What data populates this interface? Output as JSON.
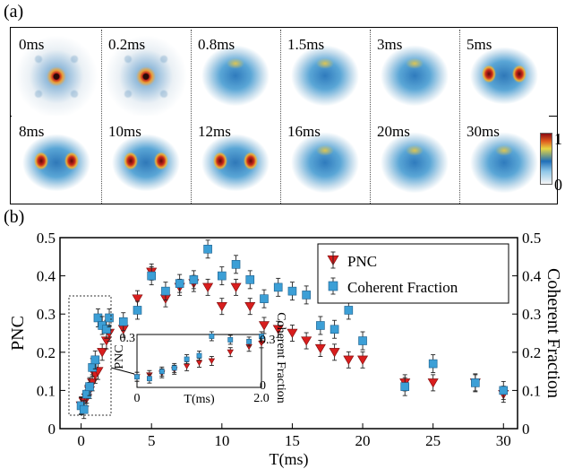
{
  "panel_a": {
    "label": "(a)",
    "frames": [
      "0ms",
      "0.2ms",
      "0.8ms",
      "1.5ms",
      "3ms",
      "5ms",
      "8ms",
      "10ms",
      "12ms",
      "16ms",
      "20ms",
      "30ms"
    ],
    "colorbar": {
      "max_label": "1",
      "min_label": "0"
    }
  },
  "panel_b": {
    "label": "(b)"
  },
  "chart_data": {
    "type": "scatter",
    "xlabel": "T(ms)",
    "ylabel_left": "PNC",
    "ylabel_right": "Coherent Fraction",
    "xlim": [
      -1.5,
      31
    ],
    "ylim": [
      0,
      0.5
    ],
    "xticks": [
      "0",
      "5",
      "10",
      "15",
      "20",
      "25",
      "30"
    ],
    "yticks": [
      "0",
      "0.1",
      "0.2",
      "0.3",
      "0.4",
      "0.5"
    ],
    "legend_position": "top-right",
    "series": [
      {
        "name": "PNC",
        "marker": "triangle-down",
        "color": "#d81e1e",
        "points": [
          [
            0,
            0.06
          ],
          [
            0.2,
            0.07
          ],
          [
            0.4,
            0.08
          ],
          [
            0.6,
            0.1
          ],
          [
            0.8,
            0.12
          ],
          [
            1.0,
            0.14
          ],
          [
            1.2,
            0.15
          ],
          [
            1.5,
            0.2
          ],
          [
            1.8,
            0.23
          ],
          [
            2.0,
            0.25
          ],
          [
            3,
            0.26
          ],
          [
            4,
            0.34
          ],
          [
            5,
            0.41
          ],
          [
            6,
            0.34
          ],
          [
            7,
            0.37
          ],
          [
            8,
            0.38
          ],
          [
            9,
            0.37
          ],
          [
            10,
            0.32
          ],
          [
            11,
            0.37
          ],
          [
            12,
            0.32
          ],
          [
            13,
            0.27
          ],
          [
            14,
            0.26
          ],
          [
            15,
            0.25
          ],
          [
            16,
            0.23
          ],
          [
            17,
            0.21
          ],
          [
            18,
            0.2
          ],
          [
            19,
            0.18
          ],
          [
            20,
            0.18
          ],
          [
            23,
            0.12
          ],
          [
            25,
            0.12
          ],
          [
            28,
            0.12
          ],
          [
            30,
            0.09
          ]
        ]
      },
      {
        "name": "Coherent Fraction",
        "marker": "square",
        "color": "#3c9fd6",
        "points": [
          [
            0,
            0.06
          ],
          [
            0.2,
            0.05
          ],
          [
            0.4,
            0.09
          ],
          [
            0.6,
            0.11
          ],
          [
            0.8,
            0.16
          ],
          [
            1.0,
            0.18
          ],
          [
            1.2,
            0.29
          ],
          [
            1.5,
            0.27
          ],
          [
            1.8,
            0.26
          ],
          [
            2.0,
            0.29
          ],
          [
            3,
            0.28
          ],
          [
            4,
            0.31
          ],
          [
            5,
            0.4
          ],
          [
            6,
            0.36
          ],
          [
            7,
            0.38
          ],
          [
            8,
            0.39
          ],
          [
            9,
            0.47
          ],
          [
            10,
            0.4
          ],
          [
            11,
            0.43
          ],
          [
            12,
            0.39
          ],
          [
            13,
            0.34
          ],
          [
            14,
            0.37
          ],
          [
            15,
            0.36
          ],
          [
            16,
            0.35
          ],
          [
            17,
            0.27
          ],
          [
            18,
            0.26
          ],
          [
            19,
            0.31
          ],
          [
            20,
            0.23
          ],
          [
            23,
            0.11
          ],
          [
            25,
            0.17
          ],
          [
            28,
            0.12
          ],
          [
            30,
            0.1
          ]
        ]
      }
    ],
    "inset": {
      "xlabel": "T(ms)",
      "ylabel_left": "PNC",
      "ylabel_right": "Coherent Fraction",
      "xlim": [
        0,
        2.0
      ],
      "ylim": [
        0,
        0.3
      ],
      "xticks": [
        "0",
        "2.0"
      ],
      "yticks_left": [
        "0.3"
      ],
      "yticks_right": [
        "0",
        "0.3"
      ],
      "series": [
        {
          "name": "PNC",
          "points": [
            [
              0,
              0.06
            ],
            [
              0.2,
              0.07
            ],
            [
              0.4,
              0.08
            ],
            [
              0.6,
              0.1
            ],
            [
              0.8,
              0.12
            ],
            [
              1.0,
              0.14
            ],
            [
              1.2,
              0.15
            ],
            [
              1.5,
              0.2
            ],
            [
              1.8,
              0.23
            ],
            [
              2.0,
              0.25
            ]
          ]
        },
        {
          "name": "Coherent Fraction",
          "points": [
            [
              0,
              0.06
            ],
            [
              0.2,
              0.05
            ],
            [
              0.4,
              0.09
            ],
            [
              0.6,
              0.11
            ],
            [
              0.8,
              0.16
            ],
            [
              1.0,
              0.18
            ],
            [
              1.2,
              0.29
            ],
            [
              1.5,
              0.27
            ],
            [
              1.8,
              0.26
            ],
            [
              2.0,
              0.29
            ]
          ]
        }
      ]
    }
  }
}
